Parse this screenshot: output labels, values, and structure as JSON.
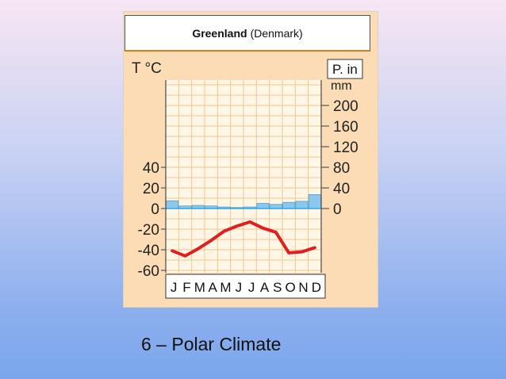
{
  "slide": {
    "caption": "6 – Polar Climate"
  },
  "chart_data": {
    "type": "climograph",
    "title_bold": "Greenland",
    "title_normal": "(Denmark)",
    "left_axis_label": "T °C",
    "right_axis_label_box": "P. in",
    "right_axis_unit": "mm",
    "months": [
      "J",
      "F",
      "M",
      "A",
      "M",
      "J",
      "J",
      "A",
      "S",
      "O",
      "N",
      "D"
    ],
    "temperature_ticks": [
      40,
      20,
      0,
      -20,
      -40,
      -60
    ],
    "precipitation_ticks": [
      200,
      160,
      120,
      80,
      40,
      0
    ],
    "temperature_ylim": [
      -60,
      40
    ],
    "precipitation_ylim": [
      0,
      200
    ],
    "series": [
      {
        "kind": "line",
        "color": "#e02020",
        "values": [
          -41,
          -46,
          -39,
          -31,
          -22,
          -17,
          -13,
          -19,
          -23,
          -43,
          -42,
          -38
        ]
      },
      {
        "kind": "bar",
        "color": "#8cc8ee",
        "values": [
          15,
          5,
          6,
          5,
          3,
          2,
          3,
          10,
          8,
          12,
          14,
          27
        ]
      }
    ],
    "colors": {
      "panel": "#fbdcb4",
      "plot_bg": "#fff6e6",
      "grid": "#f0c78f",
      "zero_line": "#35a7dd"
    }
  }
}
